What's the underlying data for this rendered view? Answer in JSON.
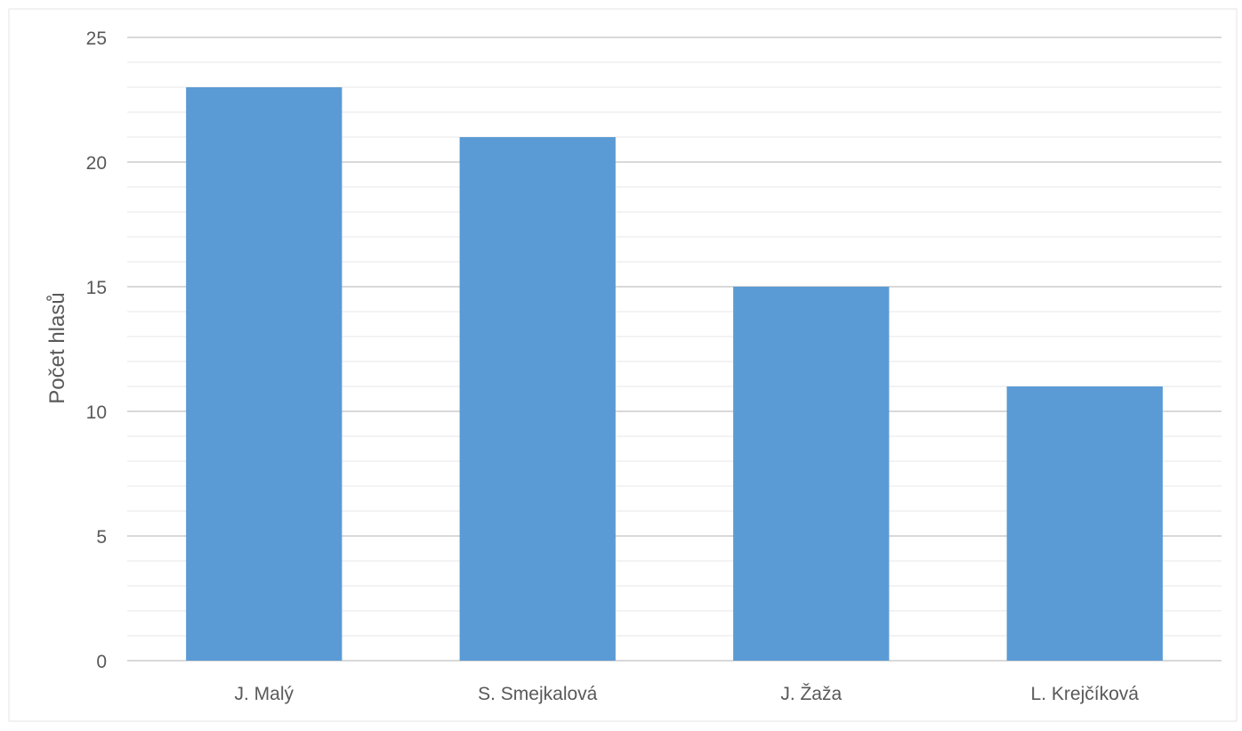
{
  "chart_data": {
    "type": "bar",
    "title": "",
    "xlabel": "",
    "ylabel": "Počet hlasů",
    "categories": [
      "J. Malý",
      "S. Smejkalová",
      "J. Žaža",
      "L. Krejčíková"
    ],
    "values": [
      23,
      21,
      15,
      11
    ],
    "ylim": [
      0,
      25
    ],
    "yticks": [
      "0",
      "5",
      "10",
      "15",
      "20",
      "25"
    ],
    "grid": true,
    "legend": "none"
  },
  "colors": {
    "bar": "#5b9bd5",
    "major_grid": "#d9d9d9",
    "minor_grid": "#efefef",
    "text": "#595959",
    "frame": "#e6e6e6"
  }
}
